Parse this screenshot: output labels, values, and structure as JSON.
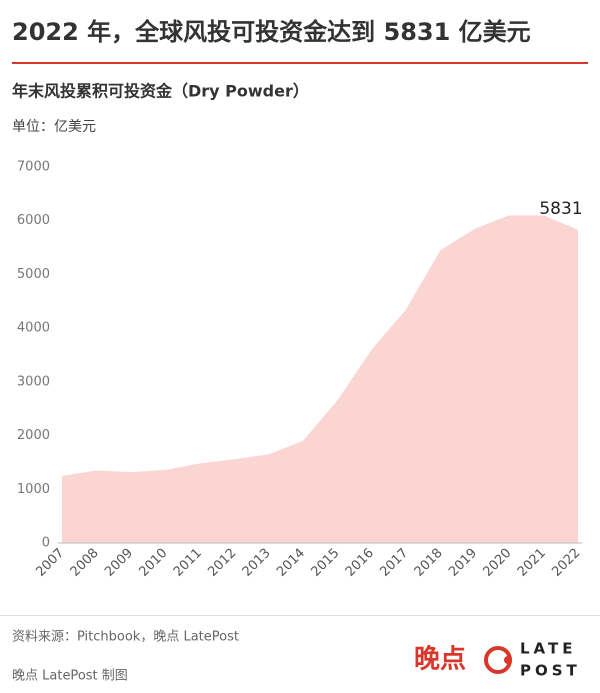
{
  "header": {
    "title": "2022 年，全球风投可投资金达到 5831 亿美元"
  },
  "chart_data": {
    "type": "area",
    "title": "年末风投累积可投资金（Dry Powder）",
    "y_unit": "单位：亿美元",
    "categories": [
      "2007",
      "2008",
      "2009",
      "2010",
      "2011",
      "2012",
      "2013",
      "2014",
      "2015",
      "2016",
      "2017",
      "2018",
      "2019",
      "2020",
      "2021",
      "2022"
    ],
    "values": [
      1250,
      1350,
      1320,
      1360,
      1480,
      1560,
      1650,
      1900,
      2650,
      3600,
      4350,
      5450,
      5850,
      6100,
      6100,
      5831
    ],
    "color": "#fbd5d2",
    "ylim": [
      0,
      7000
    ],
    "yticks": [
      0,
      1000,
      2000,
      3000,
      4000,
      5000,
      6000,
      7000
    ],
    "grid": false
  },
  "footer": {
    "source": "资料来源：Pitchbook，晚点 LatePost",
    "credit": "晚点 LatePost 制图",
    "logo_cn": "晚点",
    "logo_en_top": "LATE",
    "logo_en_bottom": "POST"
  }
}
